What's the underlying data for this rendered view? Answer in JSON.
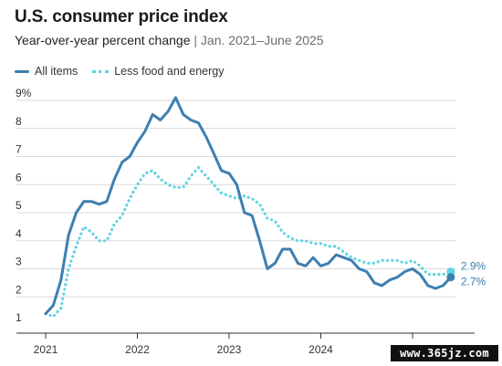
{
  "header": {
    "title": "U.S. consumer price index",
    "subtitle_main": "Year-over-year percent change",
    "subtitle_sep": " | ",
    "subtitle_range": "Jan. 2021–June 2025"
  },
  "legend": {
    "all_items": "All items",
    "core": "Less food and energy"
  },
  "colors": {
    "all_items": "#3d7fb1",
    "core": "#5fd3e3",
    "axis": "#333333",
    "grid": "#d9d9d9"
  },
  "chart_data": {
    "type": "line",
    "ylim": [
      1,
      9
    ],
    "y_ticks": [
      "9%",
      "8",
      "7",
      "6",
      "5",
      "4",
      "3",
      "2",
      "1"
    ],
    "x_ticks": [
      "2021",
      "2022",
      "2023",
      "2024",
      "2025"
    ],
    "x_range": [
      "2021-01",
      "2025-06"
    ],
    "grid": "horizontal",
    "legend_position": "top-left",
    "end_labels": {
      "all_items": "2.7%",
      "core": "2.9%"
    },
    "series": [
      {
        "name": "All items",
        "style": "solid",
        "values": [
          1.4,
          1.7,
          2.6,
          4.2,
          5.0,
          5.4,
          5.4,
          5.3,
          5.4,
          6.2,
          6.8,
          7.0,
          7.5,
          7.9,
          8.5,
          8.3,
          8.6,
          9.1,
          8.5,
          8.3,
          8.2,
          7.7,
          7.1,
          6.5,
          6.4,
          6.0,
          5.0,
          4.9,
          4.0,
          3.0,
          3.2,
          3.7,
          3.7,
          3.2,
          3.1,
          3.4,
          3.1,
          3.2,
          3.5,
          3.4,
          3.3,
          3.0,
          2.9,
          2.5,
          2.4,
          2.6,
          2.7,
          2.9,
          3.0,
          2.8,
          2.4,
          2.3,
          2.4,
          2.7
        ]
      },
      {
        "name": "Less food and energy",
        "style": "dotted",
        "values": [
          1.4,
          1.3,
          1.6,
          3.0,
          3.8,
          4.5,
          4.3,
          4.0,
          4.0,
          4.6,
          4.9,
          5.5,
          6.0,
          6.4,
          6.5,
          6.2,
          6.0,
          5.9,
          5.9,
          6.3,
          6.6,
          6.3,
          6.0,
          5.7,
          5.6,
          5.5,
          5.6,
          5.5,
          5.3,
          4.8,
          4.7,
          4.3,
          4.1,
          4.0,
          4.0,
          3.9,
          3.9,
          3.8,
          3.8,
          3.6,
          3.4,
          3.3,
          3.2,
          3.2,
          3.3,
          3.3,
          3.3,
          3.2,
          3.3,
          3.1,
          2.8,
          2.8,
          2.8,
          2.9
        ]
      }
    ]
  },
  "watermark": "www.365jz.com"
}
